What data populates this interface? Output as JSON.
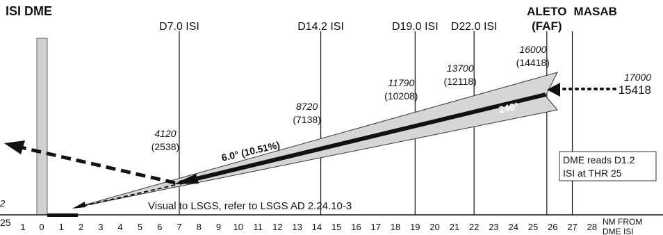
{
  "title": "ISI DME",
  "fixes": [
    {
      "nm": 7.0,
      "label": "D7.0 ISI"
    },
    {
      "nm": 14.2,
      "label": "D14.2 ISI"
    },
    {
      "nm": 19.0,
      "label": "D19.0 ISI"
    },
    {
      "nm": 22.0,
      "label": "D22.0 ISI"
    },
    {
      "nm": 25.7,
      "label": "ALETO",
      "sublabel": "(FAF)"
    },
    {
      "nm": 27.0,
      "label": "MASAB"
    }
  ],
  "altitudes": [
    {
      "nm": 7.0,
      "altitude": "4120",
      "height": "(2538)"
    },
    {
      "nm": 14.2,
      "altitude": "8720",
      "height": "(7138)"
    },
    {
      "nm": 19.0,
      "altitude": "11790",
      "height": "(10208)"
    },
    {
      "nm": 22.0,
      "altitude": "13700",
      "height": "(12118)"
    },
    {
      "nm": 25.7,
      "altitude": "16000",
      "height": "(14418)"
    },
    {
      "nm": 28.5,
      "altitude": "17000",
      "height": "15418"
    }
  ],
  "glide_path_label": "6.0° (10.51%)",
  "track_label": "246°",
  "visual_note": "Visual to LSGS, refer to LSGS AD 2.24.10-3",
  "dme_note": [
    "DME reads D1.2",
    "ISI at THR 25"
  ],
  "axis": {
    "ticks": [
      "1",
      "0",
      "1",
      "2",
      "3",
      "4",
      "5",
      "6",
      "7",
      "8",
      "9",
      "10",
      "11",
      "12",
      "13",
      "14",
      "15",
      "16",
      "17",
      "18",
      "19",
      "20",
      "21",
      "22",
      "23",
      "24",
      "25",
      "26",
      "27",
      "28"
    ],
    "unit_label": [
      "NM FROM",
      "DME ISI"
    ]
  },
  "edge_labels": {
    "left_top": "2",
    "left_bottom": "25"
  }
}
